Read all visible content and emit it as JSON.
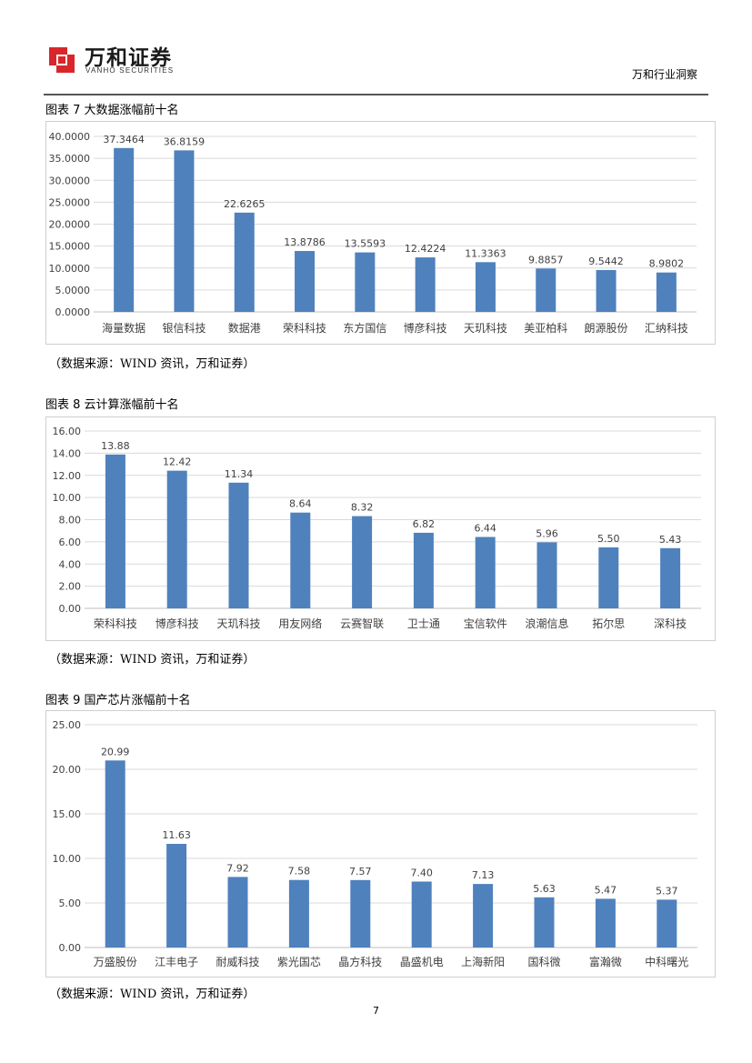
{
  "header": {
    "logo_cn": "万和证券",
    "logo_en": "VANHO SECURITIES",
    "right_title": "万和行业洞察"
  },
  "colors": {
    "bar": "#4F81BD",
    "grid": "#d9d9d9",
    "logo_red": "#d8262b"
  },
  "figures": [
    {
      "title": "图表 7 大数据涨幅前十名",
      "source": "（数据来源：WIND 资讯，万和证券）"
    },
    {
      "title": "图表 8 云计算涨幅前十名",
      "source": "（数据来源：WIND 资讯，万和证券）"
    },
    {
      "title": "图表 9 国产芯片涨幅前十名",
      "source": "（数据来源：WIND 资讯，万和证券）"
    }
  ],
  "page_number": "7",
  "chart_data": [
    {
      "type": "bar",
      "title": "图表 7 大数据涨幅前十名",
      "categories": [
        "海量数据",
        "银信科技",
        "数据港",
        "荣科科技",
        "东方国信",
        "博彦科技",
        "天玑科技",
        "美亚柏科",
        "朗源股份",
        "汇纳科技"
      ],
      "values": [
        37.3464,
        36.8159,
        22.6265,
        13.8786,
        13.5593,
        12.4224,
        11.3363,
        9.8857,
        9.5442,
        8.9802
      ],
      "value_labels": [
        "37.3464",
        "36.8159",
        "22.6265",
        "13.8786",
        "13.5593",
        "12.4224",
        "11.3363",
        "9.8857",
        "9.5442",
        "8.9802"
      ],
      "ylim": [
        0,
        40
      ],
      "yticks": [
        "0.0000",
        "5.0000",
        "10.0000",
        "15.0000",
        "20.0000",
        "25.0000",
        "30.0000",
        "35.0000",
        "40.0000"
      ],
      "grid": true,
      "xlabel": "",
      "ylabel": ""
    },
    {
      "type": "bar",
      "title": "图表 8 云计算涨幅前十名",
      "categories": [
        "荣科科技",
        "博彦科技",
        "天玑科技",
        "用友网络",
        "云赛智联",
        "卫士通",
        "宝信软件",
        "浪潮信息",
        "拓尔思",
        "深科技"
      ],
      "values": [
        13.88,
        12.42,
        11.34,
        8.64,
        8.32,
        6.82,
        6.44,
        5.96,
        5.5,
        5.43
      ],
      "value_labels": [
        "13.88",
        "12.42",
        "11.34",
        "8.64",
        "8.32",
        "6.82",
        "6.44",
        "5.96",
        "5.50",
        "5.43"
      ],
      "ylim": [
        0,
        16
      ],
      "yticks": [
        "0.00",
        "2.00",
        "4.00",
        "6.00",
        "8.00",
        "10.00",
        "12.00",
        "14.00",
        "16.00"
      ],
      "grid": true,
      "xlabel": "",
      "ylabel": ""
    },
    {
      "type": "bar",
      "title": "图表 9 国产芯片涨幅前十名",
      "categories": [
        "万盛股份",
        "江丰电子",
        "耐威科技",
        "紫光国芯",
        "晶方科技",
        "晶盛机电",
        "上海新阳",
        "国科微",
        "富瀚微",
        "中科曙光"
      ],
      "values": [
        20.99,
        11.63,
        7.92,
        7.58,
        7.57,
        7.4,
        7.13,
        5.63,
        5.47,
        5.37
      ],
      "value_labels": [
        "20.99",
        "11.63",
        "7.92",
        "7.58",
        "7.57",
        "7.40",
        "7.13",
        "5.63",
        "5.47",
        "5.37"
      ],
      "ylim": [
        0,
        25
      ],
      "yticks": [
        "0.00",
        "5.00",
        "10.00",
        "15.00",
        "20.00",
        "25.00"
      ],
      "grid": true,
      "xlabel": "",
      "ylabel": ""
    }
  ]
}
